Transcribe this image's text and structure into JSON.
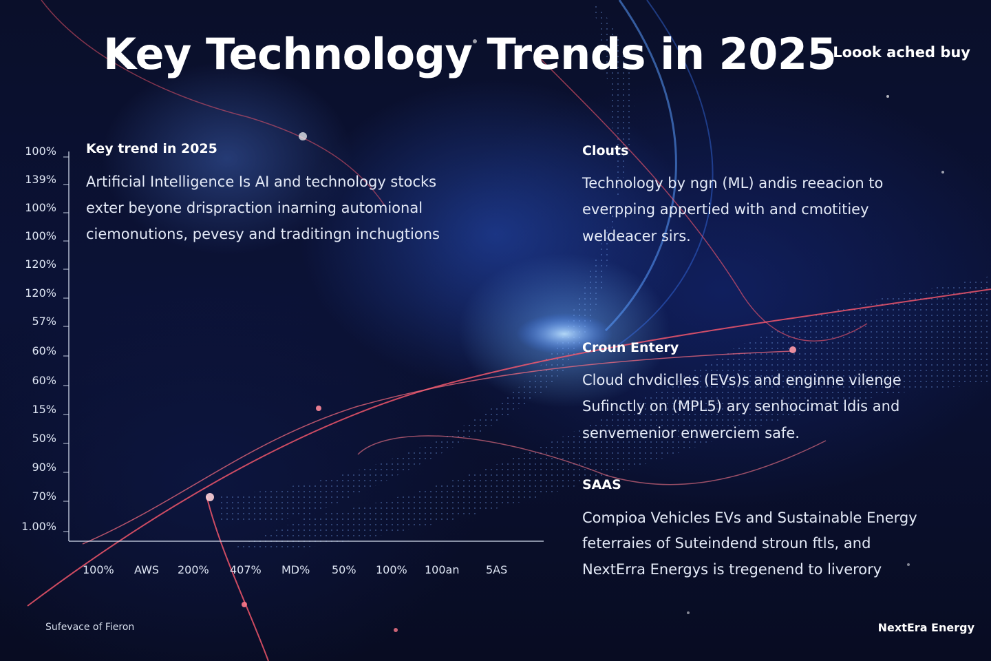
{
  "title": "Key Technology Trends in 2025",
  "tagline": "Loook ached buy",
  "chart": {
    "y_labels": [
      "100%",
      "139%",
      "100%",
      "100%",
      "120%",
      "120%",
      "57%",
      "60%",
      "60%",
      "15%",
      "50%",
      "90%",
      "70%",
      "1.00%"
    ],
    "x_labels": [
      "100%",
      "AWS",
      "200%",
      "407%",
      "MD%",
      "50%",
      "100%",
      "100an",
      "5AS"
    ]
  },
  "left_block": {
    "heading": "Key trend in 2025",
    "lines": [
      "Artificial Intelligence Is  AI and technology stocks",
      "exter beyone drispraction inarning automional",
      "ciemonutions, pevesy and traditingn inchugtions"
    ]
  },
  "right_blocks": [
    {
      "heading": "Clouts",
      "lines": [
        "Technology by ngn (ML) andis reeacion to",
        "everpping appertied with and cmotitiey",
        "weldeacer sirs."
      ]
    },
    {
      "heading": "Croun Entery",
      "lines": [
        "Cloud chvdiclles (EVs)s and enginne vilenge",
        "Sufinctly on (MPL5) ary senhocimat ldis and",
        "senvemenior enwerciem safe."
      ]
    },
    {
      "heading": "SAAS",
      "lines": [
        "Compioa Vehicles EVs and Sustainable Energy",
        "feterraies of Suteindend stroun ftls, and",
        "NextErra Energys is tregenend to liverory"
      ]
    }
  ],
  "footer": {
    "left": "Sufevace of Fieron",
    "right": "NextEra Energy"
  },
  "colors": {
    "background": "#070b1c",
    "glow_blue": "#4a8cff",
    "accent_red": "#ff5a6e"
  }
}
